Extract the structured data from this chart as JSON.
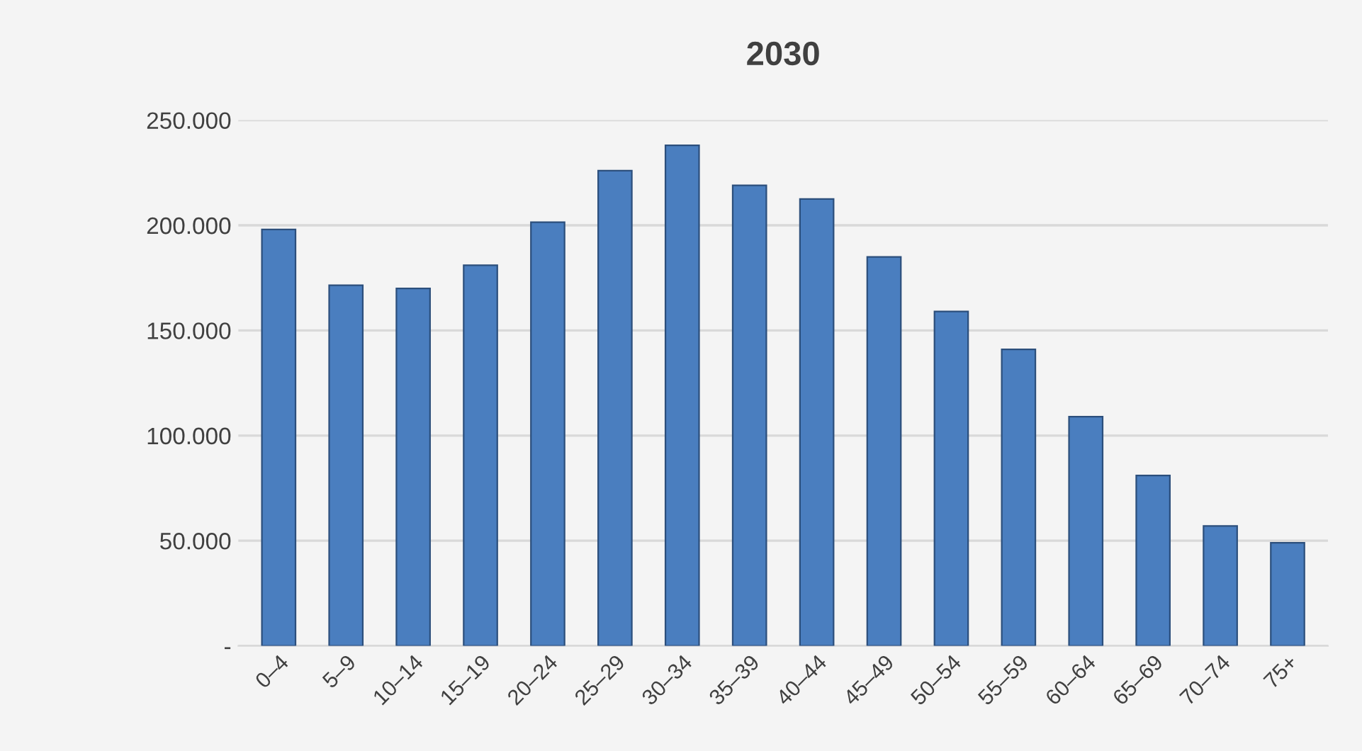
{
  "chart_data": {
    "type": "bar",
    "title": "2030",
    "categories": [
      "0–4",
      "5–9",
      "10–14",
      "15–19",
      "20–24",
      "25–29",
      "30–34",
      "35–39",
      "40–44",
      "45–49",
      "50–54",
      "55–59",
      "60–64",
      "65–69",
      "70–74",
      "75+"
    ],
    "series": [
      {
        "color": "#4a7ebf",
        "values": [
          198000,
          171500,
          170000,
          181000,
          201500,
          226000,
          238000,
          219000,
          212500,
          185000,
          159000,
          141000,
          109000,
          81000,
          57000,
          49000
        ]
      }
    ],
    "ylim": [
      0,
      250000
    ],
    "yticks": [
      {
        "value": 0,
        "label": "-"
      },
      {
        "value": 50000,
        "label": "50.000"
      },
      {
        "value": 100000,
        "label": "100.000"
      },
      {
        "value": 150000,
        "label": "150.000"
      },
      {
        "value": 200000,
        "label": "200.000"
      },
      {
        "value": 250000,
        "label": "250.000"
      }
    ],
    "grid": "y"
  }
}
